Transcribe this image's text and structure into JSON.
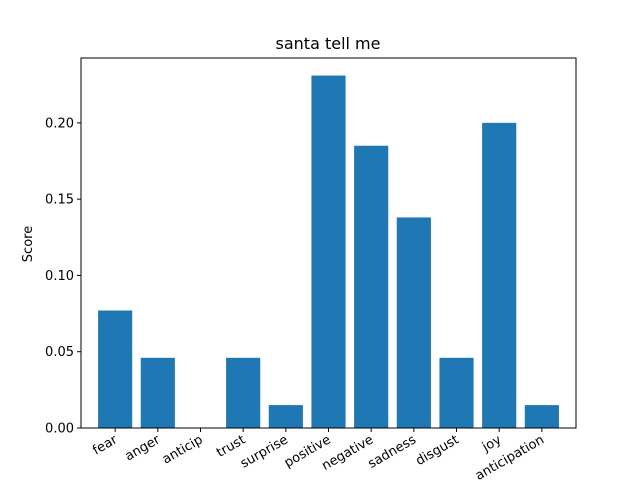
{
  "chart_data": {
    "type": "bar",
    "title": "santa tell me",
    "xlabel": "",
    "ylabel": "Score",
    "categories": [
      "fear",
      "anger",
      "anticip",
      "trust",
      "surprise",
      "positive",
      "negative",
      "sadness",
      "disgust",
      "joy",
      "anticipation"
    ],
    "values": [
      0.077,
      0.046,
      0.0,
      0.046,
      0.015,
      0.231,
      0.185,
      0.138,
      0.046,
      0.2,
      0.015
    ],
    "ylim": [
      0,
      0.2425
    ],
    "yticks": [
      "0.00",
      "0.05",
      "0.10",
      "0.15",
      "0.20"
    ],
    "bar_color": "#1f77b4",
    "grid": false,
    "legend": "none"
  }
}
